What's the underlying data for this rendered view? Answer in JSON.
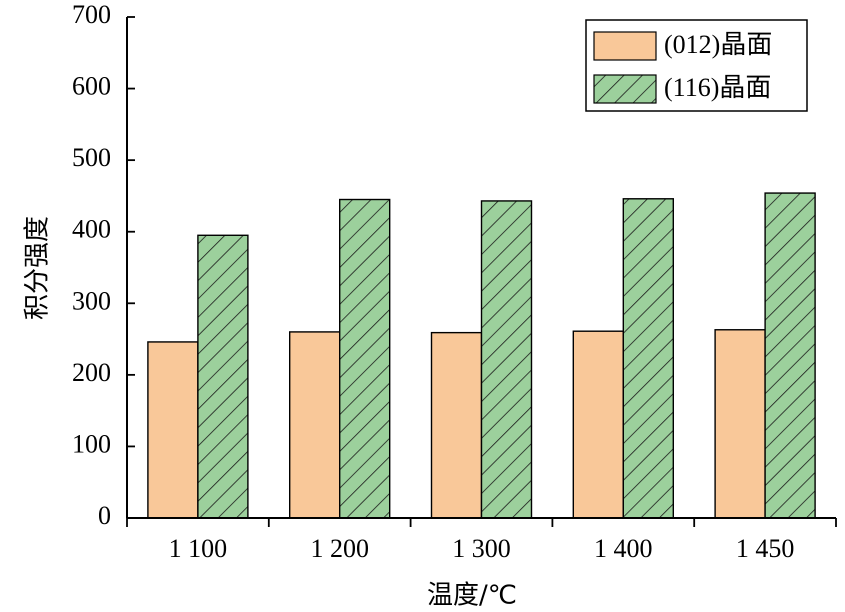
{
  "chart_data": {
    "type": "bar",
    "categories": [
      "1 100",
      "1 200",
      "1 300",
      "1 400",
      "1 450"
    ],
    "series": [
      {
        "name": "(012)晶面",
        "values": [
          246,
          260,
          259,
          261,
          263
        ],
        "color": "#f9c899",
        "pattern": "solid"
      },
      {
        "name": "(116)晶面",
        "values": [
          395,
          445,
          443,
          446,
          454
        ],
        "color": "#9cd09c",
        "pattern": "diagonal-hatch"
      }
    ],
    "xlabel": "温度/℃",
    "ylabel": "积分强度",
    "ylim": [
      0,
      700
    ],
    "yticks": [
      "0",
      "100",
      "200",
      "300",
      "400",
      "500",
      "600",
      "700"
    ],
    "legend_position": "top-right",
    "grid": false
  }
}
